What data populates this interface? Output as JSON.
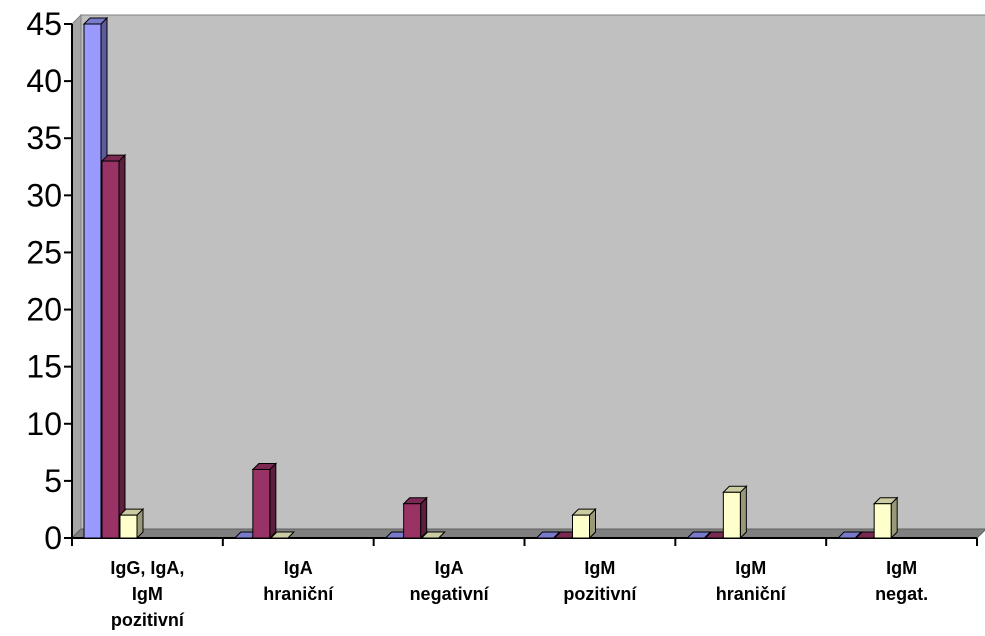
{
  "chart_data": {
    "type": "bar",
    "style": "3d-clustered-column",
    "categories": [
      [
        "IgG, IgA,",
        "IgM",
        "pozitivní"
      ],
      [
        "IgA",
        "hraniční"
      ],
      [
        "IgA",
        "negativní"
      ],
      [
        "IgM",
        "pozitivní"
      ],
      [
        "IgM",
        "hraniční"
      ],
      [
        "IgM",
        "negat."
      ]
    ],
    "series": [
      {
        "color": "#9999ff",
        "values": [
          45,
          0,
          0,
          0,
          0,
          0
        ]
      },
      {
        "color": "#993366",
        "values": [
          33,
          6,
          3,
          0,
          0,
          0
        ]
      },
      {
        "color": "#ffffcc",
        "values": [
          2,
          0,
          0,
          2,
          4,
          3
        ]
      }
    ],
    "ylim": [
      0,
      45
    ],
    "yticks": [
      "0",
      "5",
      "10",
      "15",
      "20",
      "25",
      "30",
      "35",
      "40",
      "45"
    ],
    "plot_background": "#c0c0c0",
    "grid": false,
    "legend": "none"
  }
}
